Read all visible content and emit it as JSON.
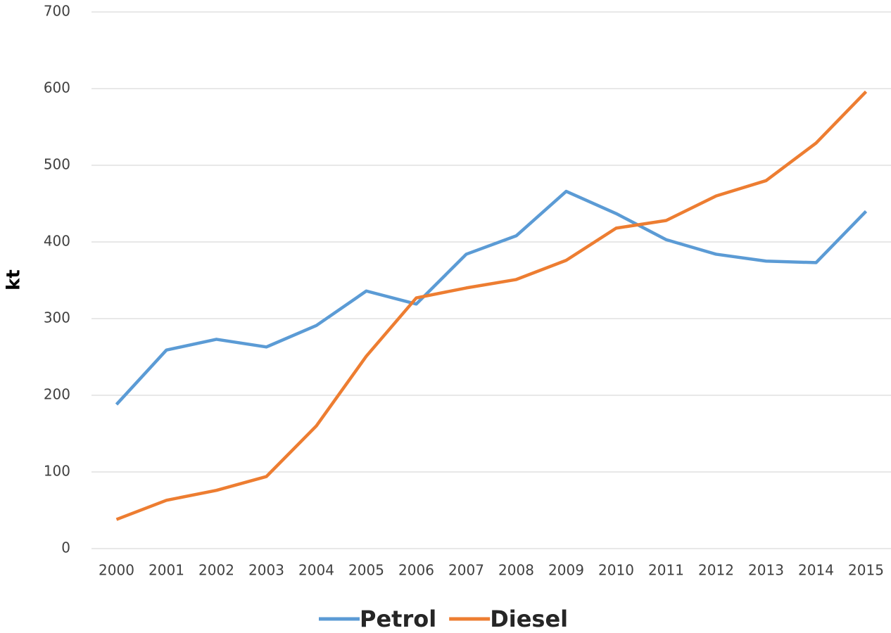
{
  "chart_data": {
    "type": "line",
    "y_label": "kt",
    "categories": [
      "2000",
      "2001",
      "2002",
      "2003",
      "2004",
      "2005",
      "2006",
      "2007",
      "2008",
      "2009",
      "2010",
      "2011",
      "2012",
      "2013",
      "2014",
      "2015"
    ],
    "series": [
      {
        "name": "Petrol",
        "color": "#5b9bd5",
        "values": [
          188,
          259,
          273,
          263,
          291,
          336,
          319,
          384,
          408,
          466,
          437,
          403,
          384,
          375,
          373,
          440
        ]
      },
      {
        "name": "Diesel",
        "color": "#ed7d31",
        "values": [
          38,
          63,
          76,
          94,
          160,
          251,
          327,
          340,
          351,
          376,
          418,
          428,
          460,
          480,
          529,
          596
        ]
      }
    ],
    "ylim": [
      0,
      700
    ],
    "yticks": [
      0,
      100,
      200,
      300,
      400,
      500,
      600,
      700
    ],
    "grid": true,
    "legend": "bottom"
  }
}
